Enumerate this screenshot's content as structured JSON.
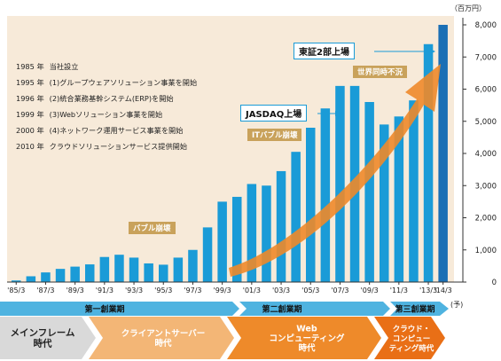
{
  "unit_label": "（百万円）",
  "forecast_suffix": "(予)",
  "history": [
    {
      "year": "1985 年",
      "text": "当社設立"
    },
    {
      "year": "1995 年",
      "text": "(1)グループウェアソリューション事業を開始"
    },
    {
      "year": "1996 年",
      "text": "(2)統合業務基幹システム(ERP)を開始"
    },
    {
      "year": "1999 年",
      "text": "(3)Webソリューション事業を開始"
    },
    {
      "year": "2000 年",
      "text": "(4)ネットワーク運用サービス事業を開始"
    },
    {
      "year": "2010 年",
      "text": "クラウドソリューションサービス提供開始"
    }
  ],
  "annotations": {
    "tosho": "東証2部上場",
    "jasdaq": "JASDAQ上場",
    "bubble": "バブル崩壊",
    "it_bubble": "ITバブル崩壊",
    "world_recession": "世界同時不況"
  },
  "phases": [
    {
      "label": "第一創業期"
    },
    {
      "label": "第二創業期"
    },
    {
      "label": "第三創業期"
    }
  ],
  "eras": [
    {
      "label": "メインフレーム\n時代"
    },
    {
      "label": "クライアントサーバー\n時代"
    },
    {
      "label": "Web\nコンピューティング\n時代"
    },
    {
      "label": "クラウド・\nコンピュー\nティング時代"
    }
  ],
  "colors": {
    "bar": "#1a9bd7",
    "bar_forecast": "#1a6fb5",
    "background_panel": "#f7ead9",
    "arrow": "#ee8a2a",
    "phase_band": "#4fb3e0",
    "era_gray": "#d9d9d9",
    "era_orange_light": "#f3b676",
    "era_orange": "#ee8a2a",
    "era_orange_dark": "#e96f16"
  },
  "chart_data": {
    "type": "bar",
    "ylabel": "（百万円）",
    "ylim": [
      0,
      8000
    ],
    "yticks": [
      0,
      1000,
      2000,
      3000,
      4000,
      5000,
      6000,
      7000,
      8000
    ],
    "ytick_labels": [
      "0",
      "1,000",
      "2,000",
      "3,000",
      "4,000",
      "5,000",
      "6,000",
      "7,000",
      "8,000"
    ],
    "x_tick_labels": [
      "'85/3",
      "'87/3",
      "'89/3",
      "'91/3",
      "'93/3",
      "'95/3",
      "'97/3",
      "'99/3",
      "'01/3",
      "'03/3",
      "'05/3",
      "'07/3",
      "'09/3",
      "'11/3",
      "'13/3",
      "'14/3"
    ],
    "categories": [
      "'85/3",
      "'86/3",
      "'87/3",
      "'88/3",
      "'89/3",
      "'90/3",
      "'91/3",
      "'92/3",
      "'93/3",
      "'94/3",
      "'95/3",
      "'96/3",
      "'97/3",
      "'98/3",
      "'99/3",
      "'00/3",
      "'01/3",
      "'02/3",
      "'03/3",
      "'04/3",
      "'05/3",
      "'06/3",
      "'07/3",
      "'08/3",
      "'09/3",
      "'10/3",
      "'11/3",
      "'12/3",
      "'13/3",
      "'14/3"
    ],
    "values": [
      50,
      180,
      300,
      410,
      480,
      550,
      780,
      850,
      760,
      580,
      540,
      760,
      1000,
      1700,
      2500,
      2650,
      3050,
      3000,
      3450,
      4050,
      4800,
      5400,
      6100,
      6100,
      5600,
      4900,
      5150,
      5650,
      7400,
      8000
    ],
    "forecast_index": 29,
    "grid": false,
    "legend": "none"
  }
}
